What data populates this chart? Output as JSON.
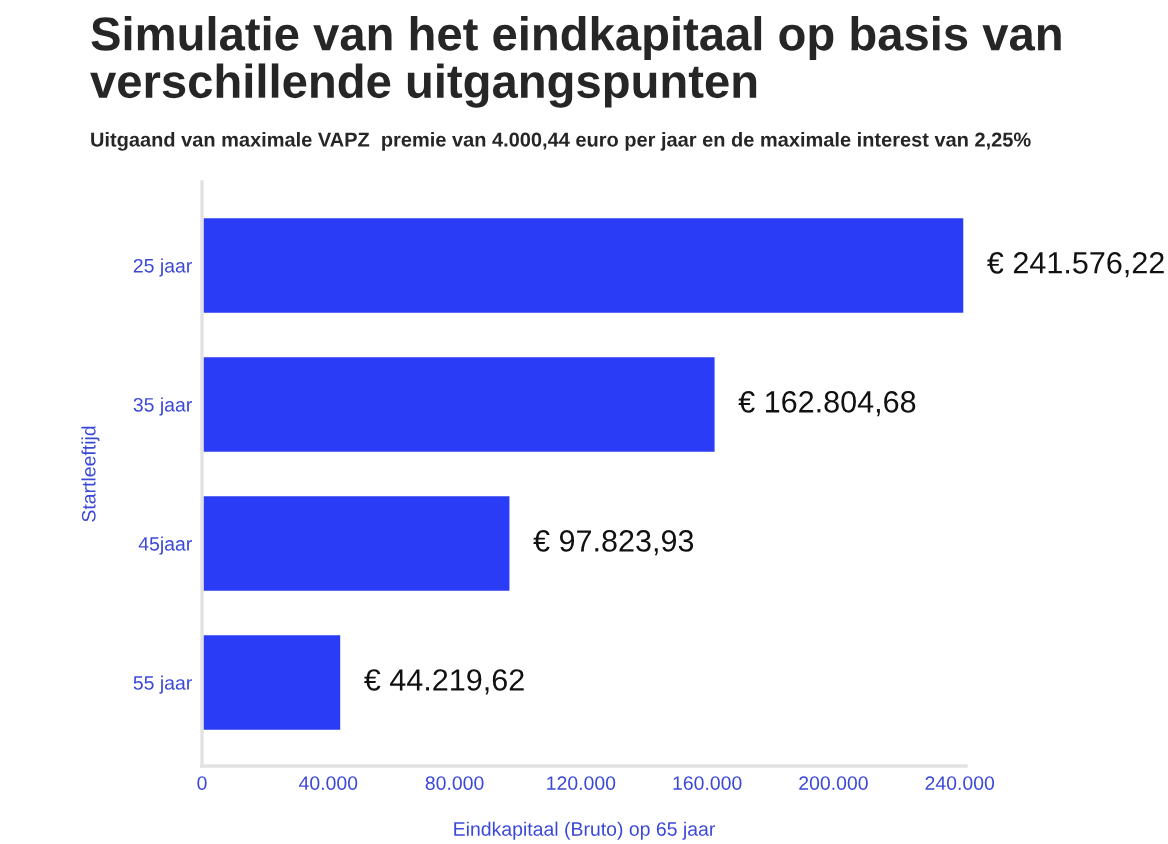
{
  "chart_data": {
    "type": "bar",
    "orientation": "horizontal",
    "title": "Simulatie van het eindkapitaal op basis van verschillende uitgangspunten",
    "subtitle": "Uitgaand van maximale VAPZ  premie van 4.000,44 euro per jaar en de maximale interest van 2,25%",
    "xlabel": "Eindkapitaal (Bruto) op 65 jaar",
    "ylabel": "Startleeftijd",
    "categories": [
      "25 jaar",
      "35 jaar",
      "45jaar",
      "55 jaar"
    ],
    "series": [
      {
        "color": "#2b3cf6",
        "values": [
          241576.22,
          162804.68,
          97823.93,
          44219.62
        ],
        "value_labels": [
          "€ 241.576,22",
          "€ 162.804,68",
          "€ 97.823,93",
          "€ 44.219,62"
        ]
      }
    ],
    "xlim": [
      0,
      242000
    ],
    "xticks": [
      0,
      {
        "value": 40000,
        "label": "40.000"
      },
      {
        "value": 80000,
        "label": "80.000"
      },
      {
        "value": 120000,
        "label": "120.000"
      },
      {
        "value": 160000,
        "label": "160.000"
      },
      {
        "value": 200000,
        "label": "200.000"
      },
      {
        "value": 240000,
        "label": "240.000"
      }
    ],
    "grid": false
  }
}
